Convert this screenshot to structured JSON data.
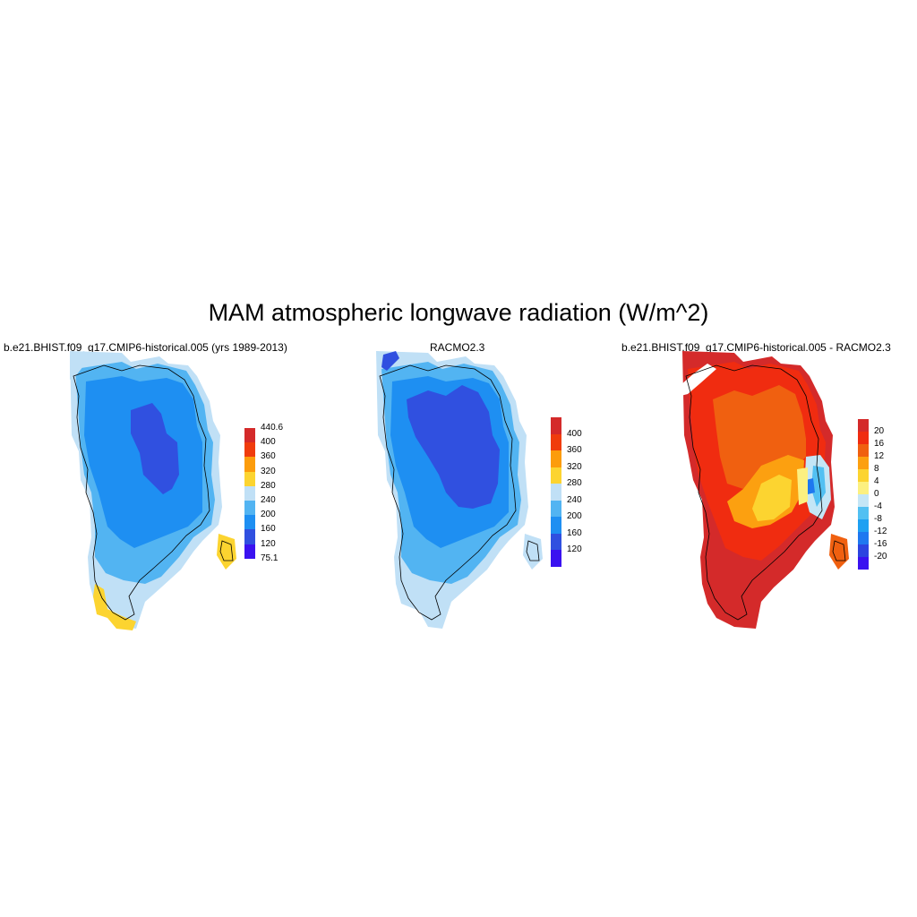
{
  "title": "MAM atmospheric longwave radiation (W/m^2)",
  "panels": [
    {
      "title": "b.e21.BHIST.f09_g17.CMIP6-historical.005 (yrs 1989-2013)",
      "colorbar": {
        "colors": [
          "#3a12f0",
          "#3050e0",
          "#1e8ff2",
          "#52b4f2",
          "#c0e0f6",
          "#fcd430",
          "#fc9c0c",
          "#f03c0c",
          "#d42a2a"
        ],
        "labels": [
          "75.1",
          "120",
          "160",
          "200",
          "240",
          "280",
          "320",
          "360",
          "400",
          "440.6"
        ]
      }
    },
    {
      "title": "RACMO2.3",
      "colorbar": {
        "colors": [
          "#3a12f0",
          "#3050e0",
          "#1e8ff2",
          "#52b4f2",
          "#c0e0f6",
          "#fcd430",
          "#fc9c0c",
          "#f03c0c",
          "#d42a2a"
        ],
        "labels": [
          "120",
          "160",
          "200",
          "240",
          "280",
          "320",
          "360",
          "400"
        ]
      }
    },
    {
      "title": "b.e21.BHIST.f09_g17.CMIP6-historical.005 - RACMO2.3",
      "colorbar": {
        "colors": [
          "#3a12f0",
          "#2c44e0",
          "#1e78f0",
          "#1ea0f2",
          "#52c0f2",
          "#c4e6f6",
          "#fcf080",
          "#fcd430",
          "#fca010",
          "#f06010",
          "#f02c10",
          "#d42a2a"
        ],
        "labels": [
          "-20",
          "-16",
          "-12",
          "-8",
          "-4",
          "0",
          "4",
          "8",
          "12",
          "16",
          "20"
        ]
      }
    }
  ]
}
